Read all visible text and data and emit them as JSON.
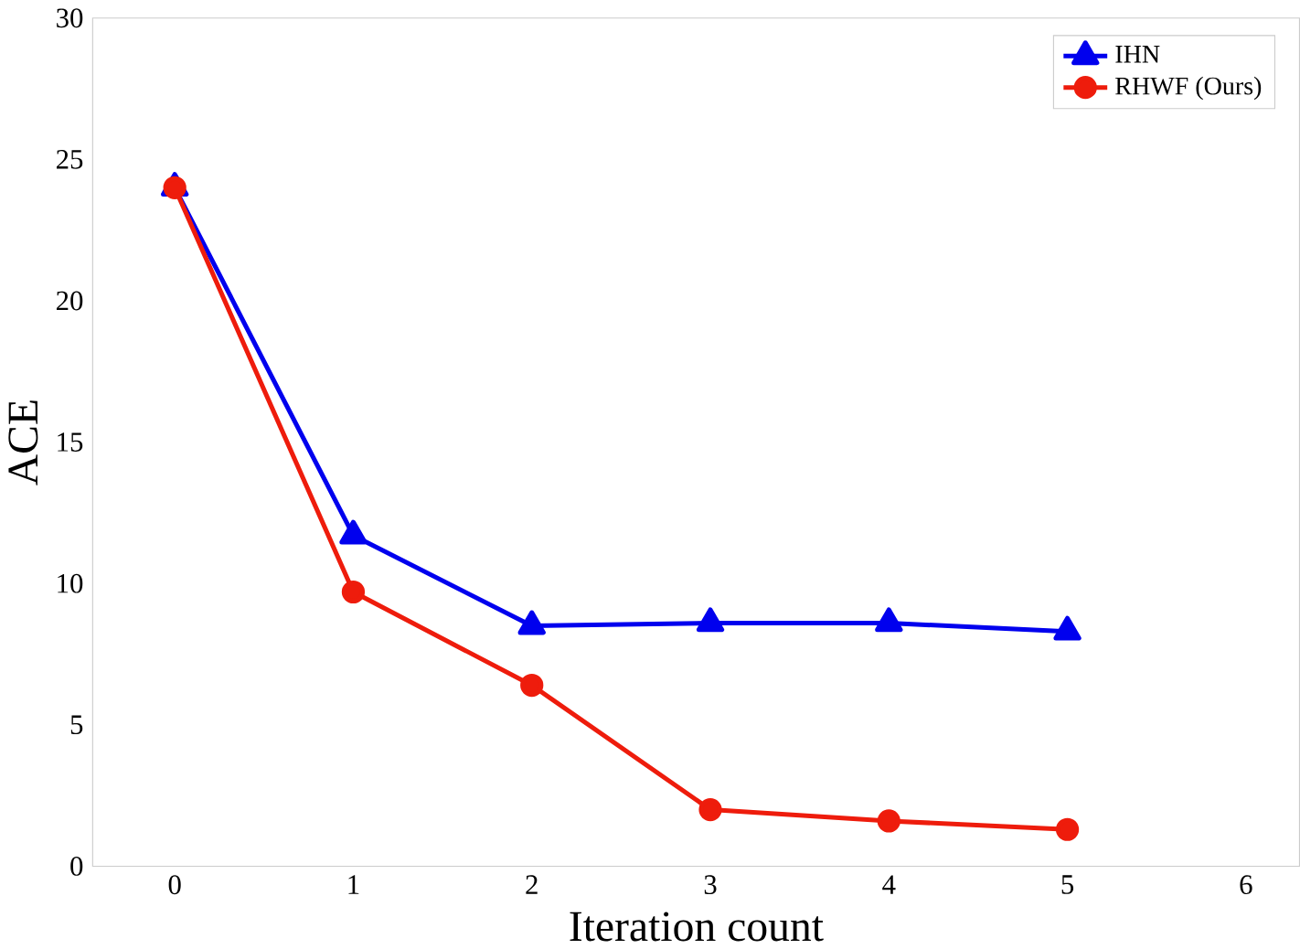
{
  "chart_data": {
    "type": "line",
    "xlabel": "Iteration count",
    "ylabel": "ACE",
    "x": [
      0,
      1,
      2,
      3,
      4,
      5
    ],
    "xlim": [
      -0.46,
      6.3
    ],
    "ylim": [
      0,
      30
    ],
    "xticks": [
      0,
      1,
      2,
      3,
      4,
      5,
      6
    ],
    "yticks": [
      0,
      5,
      10,
      15,
      20,
      25,
      30
    ],
    "grid": false,
    "legend": "top right",
    "line_style": "solid",
    "series": [
      {
        "name": "IHN",
        "color": "#0000ee",
        "marker": "triangle",
        "values": [
          24,
          11.7,
          8.5,
          8.6,
          8.6,
          8.3
        ]
      },
      {
        "name": "RHWF (Ours)",
        "color": "#ee1c0c",
        "marker": "circle",
        "values": [
          24,
          9.7,
          6.4,
          2.0,
          1.6,
          1.3
        ]
      }
    ]
  }
}
